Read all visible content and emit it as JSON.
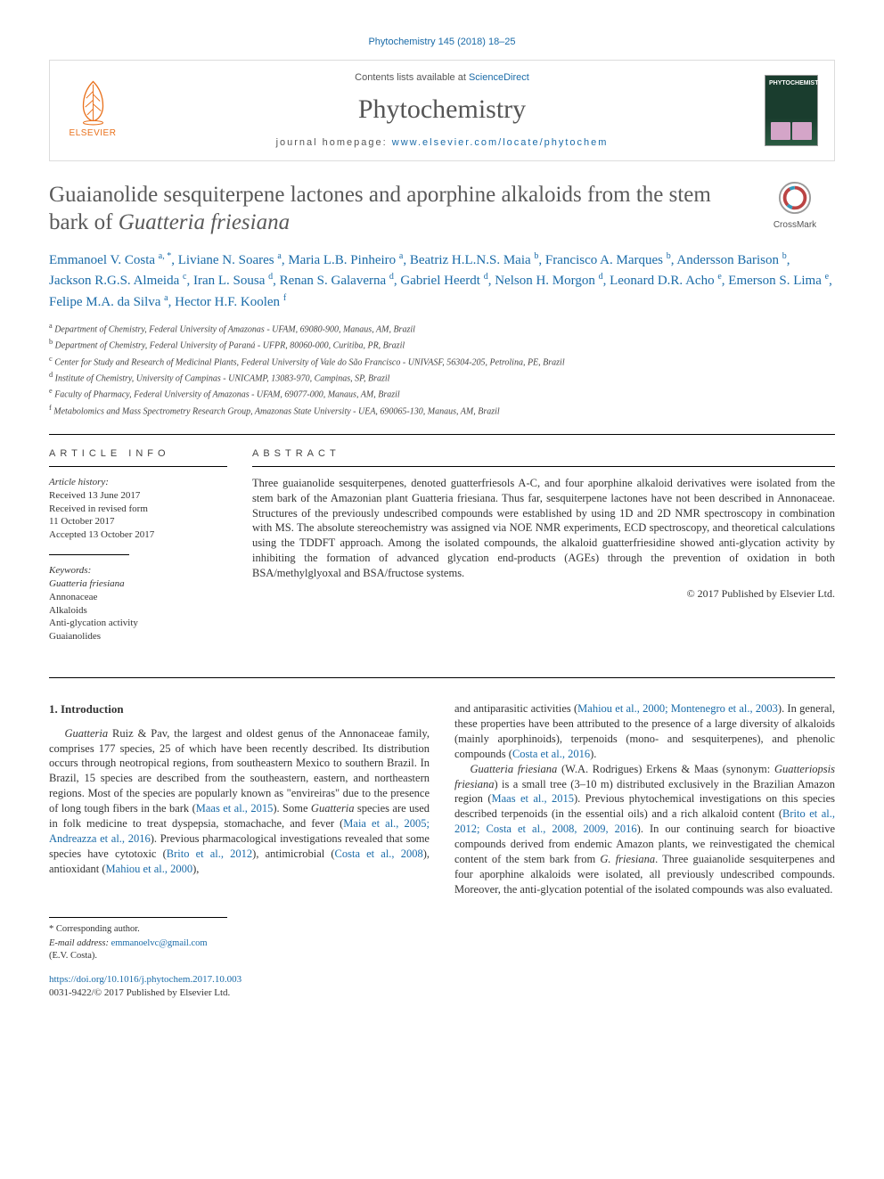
{
  "citation_top": "Phytochemistry 145 (2018) 18–25",
  "header": {
    "publisher_brand": "ELSEVIER",
    "contents_prefix": "Contents lists available at ",
    "contents_link": "ScienceDirect",
    "journal_title": "Phytochemistry",
    "homepage_prefix": "journal homepage: ",
    "homepage_url": "www.elsevier.com/locate/phytochem",
    "cover_title": "PHYTOCHEMISTRY"
  },
  "crossmark_label": "CrossMark",
  "title_html": "Guaianolide sesquiterpene lactones and aporphine alkaloids from the stem bark of <em>Guatteria friesiana</em>",
  "authors_html": "Emmanoel V. Costa <sup>a, *</sup>, Liviane N. Soares <sup>a</sup>, Maria L.B. Pinheiro <sup>a</sup>, Beatriz H.L.N.S. Maia <sup>b</sup>, Francisco A. Marques <sup>b</sup>, Andersson Barison <sup>b</sup>, Jackson R.G.S. Almeida <sup>c</sup>, Iran L. Sousa <sup>d</sup>, Renan S. Galaverna <sup>d</sup>, Gabriel Heerdt <sup>d</sup>, Nelson H. Morgon <sup>d</sup>, Leonard D.R. Acho <sup>e</sup>, Emerson S. Lima <sup>e</sup>, Felipe M.A. da Silva <sup>a</sup>, Hector H.F. Koolen <sup>f</sup>",
  "affiliations": [
    "a Department of Chemistry, Federal University of Amazonas - UFAM, 69080-900, Manaus, AM, Brazil",
    "b Department of Chemistry, Federal University of Paraná - UFPR, 80060-000, Curitiba, PR, Brazil",
    "c Center for Study and Research of Medicinal Plants, Federal University of Vale do São Francisco - UNIVASF, 56304-205, Petrolina, PE, Brazil",
    "d Institute of Chemistry, University of Campinas - UNICAMP, 13083-970, Campinas, SP, Brazil",
    "e Faculty of Pharmacy, Federal University of Amazonas - UFAM, 69077-000, Manaus, AM, Brazil",
    "f Metabolomics and Mass Spectrometry Research Group, Amazonas State University - UEA, 690065-130, Manaus, AM, Brazil"
  ],
  "info": {
    "heading": "ARTICLE INFO",
    "history_label": "Article history:",
    "history_lines": [
      "Received 13 June 2017",
      "Received in revised form",
      "11 October 2017",
      "Accepted 13 October 2017"
    ],
    "keywords_label": "Keywords:",
    "keywords": [
      "Guatteria friesiana",
      "Annonaceae",
      "Alkaloids",
      "Anti-glycation activity",
      "Guaianolides"
    ]
  },
  "abstract": {
    "heading": "ABSTRACT",
    "text": "Three guaianolide sesquiterpenes, denoted guatterfriesols A-C, and four aporphine alkaloid derivatives were isolated from the stem bark of the Amazonian plant Guatteria friesiana. Thus far, sesquiterpene lactones have not been described in Annonaceae. Structures of the previously undescribed compounds were established by using 1D and 2D NMR spectroscopy in combination with MS. The absolute stereochemistry was assigned via NOE NMR experiments, ECD spectroscopy, and theoretical calculations using the TDDFT approach. Among the isolated compounds, the alkaloid guatterfriesidine showed anti-glycation activity by inhibiting the formation of advanced glycation end-products (AGEs) through the prevention of oxidation in both BSA/methylglyoxal and BSA/fructose systems.",
    "copyright": "© 2017 Published by Elsevier Ltd."
  },
  "intro": {
    "heading": "1. Introduction",
    "p1_html": "<em>Guatteria</em> Ruiz & Pav, the largest and oldest genus of the Annonaceae family, comprises 177 species, 25 of which have been recently described. Its distribution occurs through neotropical regions, from southeastern Mexico to southern Brazil. In Brazil, 15 species are described from the southeastern, eastern, and northeastern regions. Most of the species are popularly known as \"envireiras\" due to the presence of long tough fibers in the bark (<a>Maas et al., 2015</a>). Some <em>Guatteria</em> species are used in folk medicine to treat dyspepsia, stomachache, and fever (<a>Maia et al., 2005; Andreazza et al., 2016</a>). Previous pharmacological investigations revealed that some species have cytotoxic (<a>Brito et al., 2012</a>), antimicrobial (<a>Costa et al., 2008</a>), antioxidant (<a>Mahiou et al., 2000</a>),",
    "p2_html": "and antiparasitic activities (<a>Mahiou et al., 2000; Montenegro et al., 2003</a>). In general, these properties have been attributed to the presence of a large diversity of alkaloids (mainly aporphinoids), terpenoids (mono- and sesquiterpenes), and phenolic compounds (<a>Costa et al., 2016</a>).",
    "p3_html": "<em>Guatteria friesiana</em> (W.A. Rodrigues) Erkens & Maas (synonym: <em>Guatteriopsis friesiana</em>) is a small tree (3–10 m) distributed exclusively in the Brazilian Amazon region (<a>Maas et al., 2015</a>). Previous phytochemical investigations on this species described terpenoids (in the essential oils) and a rich alkaloid content (<a>Brito et al., 2012; Costa et al., 2008, 2009, 2016</a>). In our continuing search for bioactive compounds derived from endemic Amazon plants, we reinvestigated the chemical content of the stem bark from <em>G. friesiana</em>. Three guaianolide sesquiterpenes and four aporphine alkaloids were isolated, all previously undescribed compounds. Moreover, the anti-glycation potential of the isolated compounds was also evaluated."
  },
  "footnotes": {
    "corresponding": "* Corresponding author.",
    "email_label": "E-mail address:",
    "email": "emmanoelvc@gmail.com",
    "email_owner": "(E.V. Costa)."
  },
  "doi": {
    "url": "https://doi.org/10.1016/j.phytochem.2017.10.003",
    "issn_line": "0031-9422/© 2017 Published by Elsevier Ltd."
  },
  "colors": {
    "link": "#1a6ba8",
    "brand_orange": "#e9711c",
    "title_gray": "#5a5a5a",
    "border": "#dcdcdc"
  }
}
